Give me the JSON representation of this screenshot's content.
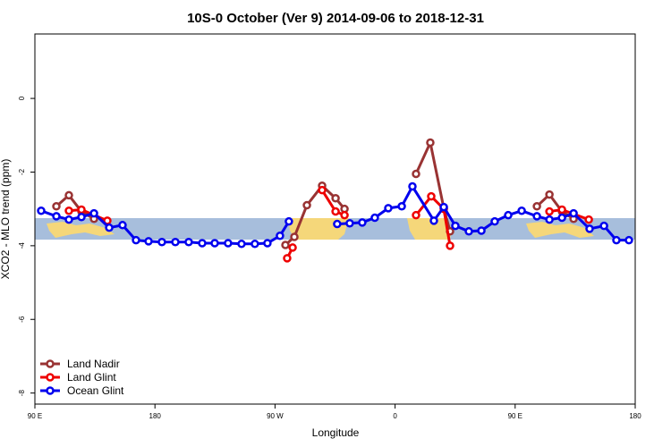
{
  "chart_data": {
    "type": "line",
    "title": "10S-0 October (Ver 9)   2014-09-06 to 2018-12-31",
    "x_label": "Longitude",
    "y_label": "XCO2 - MLO trend (ppm)",
    "xlim": [
      90,
      540
    ],
    "ylim": [
      -8.3,
      1.75
    ],
    "xticks": [
      {
        "value": 90,
        "label": "90 E"
      },
      {
        "value": 180,
        "label": "180"
      },
      {
        "value": 270,
        "label": "90 W"
      },
      {
        "value": 360,
        "label": "0"
      },
      {
        "value": 450,
        "label": "90 E"
      },
      {
        "value": 540,
        "label": "180"
      }
    ],
    "yticks": [
      0,
      -2,
      -4,
      -6,
      -8
    ],
    "legend": "bottom-left",
    "series": [
      {
        "name": "Land Nadir",
        "color": "#993333",
        "x": [
          106.1,
          115.5,
          124.9,
          134.3,
          200,
          277.8,
          284.5,
          293.9,
          305.3,
          315.4,
          322.1,
          340,
          375.7,
          386.4,
          396.5,
          401.2,
          450,
          466.3,
          475.7,
          485.1,
          493.8
        ],
        "values": [
          -2.93,
          -2.63,
          -3.07,
          -3.27,
          null,
          -3.98,
          -3.76,
          -2.9,
          -2.37,
          -2.71,
          -3.0,
          null,
          -2.05,
          -1.2,
          -2.98,
          -3.61,
          null,
          -2.93,
          -2.61,
          -3.07,
          -3.27
        ]
      },
      {
        "name": "Land Glint",
        "color": "#ee0000",
        "x": [
          115.5,
          124.9,
          144.3,
          200,
          279.1,
          283.2,
          295,
          305.3,
          315.4,
          322.1,
          340,
          375.7,
          387.1,
          396.5,
          401.2,
          450,
          475.7,
          485.1,
          505.2
        ],
        "values": [
          -3.05,
          -3.02,
          -3.32,
          null,
          -4.34,
          -4.05,
          null,
          -2.49,
          -3.07,
          -3.17,
          null,
          -3.17,
          -2.66,
          -3.0,
          -4.0,
          null,
          -3.07,
          -3.02,
          -3.29
        ]
      },
      {
        "name": "Ocean Glint",
        "color": "#0000ee",
        "x": [
          94.7,
          106.1,
          115.5,
          124.9,
          134.3,
          145.7,
          155.7,
          165.8,
          175.2,
          185.2,
          195.3,
          205.3,
          215.4,
          224.8,
          234.8,
          244.9,
          254.9,
          264.3,
          273.7,
          280.4,
          300,
          316.6,
          326.0,
          335.4,
          344.8,
          354.9,
          365.0,
          373.0,
          389.1,
          396.5,
          405.2,
          415.3,
          424.7,
          434.7,
          444.8,
          454.9,
          466.3,
          475.7,
          485.1,
          493.8,
          505.8,
          516.6,
          525.9,
          535.3
        ],
        "values": [
          -3.05,
          -3.2,
          -3.29,
          -3.22,
          -3.12,
          -3.51,
          -3.44,
          -3.85,
          -3.88,
          -3.9,
          -3.9,
          -3.9,
          -3.93,
          -3.93,
          -3.93,
          -3.95,
          -3.95,
          -3.93,
          -3.73,
          -3.34,
          null,
          -3.41,
          -3.39,
          -3.37,
          -3.24,
          -2.98,
          -2.93,
          -2.39,
          -3.32,
          -2.95,
          -3.46,
          -3.61,
          -3.59,
          -3.34,
          -3.17,
          -3.05,
          -3.2,
          -3.29,
          -3.24,
          -3.12,
          -3.54,
          -3.46,
          -3.85,
          -3.85
        ]
      }
    ]
  }
}
